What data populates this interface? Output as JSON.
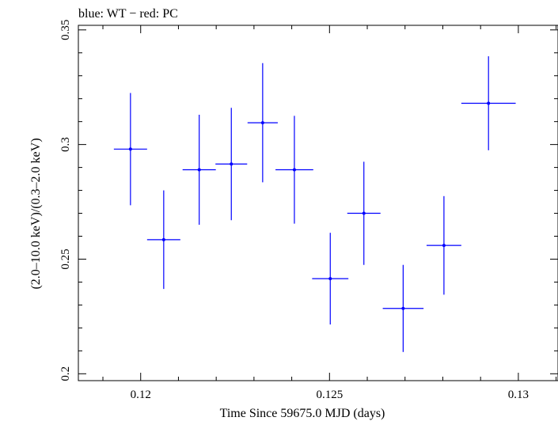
{
  "chart_data": {
    "type": "scatter",
    "title": "blue: WT − red: PC",
    "xlabel": "Time Since 59675.0 MJD (days)",
    "ylabel": "(2.0–10.0 keV)/(0.3–2.0 keV)",
    "xlim": [
      0.11835,
      0.13105
    ],
    "ylim": [
      0.197,
      0.352
    ],
    "x_ticks": [
      {
        "value": 0.12,
        "label": "0.12"
      },
      {
        "value": 0.125,
        "label": "0.125"
      },
      {
        "value": 0.13,
        "label": "0.13"
      }
    ],
    "y_ticks": [
      {
        "value": 0.2,
        "label": "0.2"
      },
      {
        "value": 0.25,
        "label": "0.25"
      },
      {
        "value": 0.3,
        "label": "0.3"
      },
      {
        "value": 0.35,
        "label": "0.35"
      }
    ],
    "grid": false,
    "series": [
      {
        "color": "#0000ff",
        "points": [
          {
            "x": 0.11973,
            "xerr": 0.00044,
            "y": 0.298,
            "yerr": 0.0245
          },
          {
            "x": 0.12061,
            "xerr": 0.00044,
            "y": 0.2585,
            "yerr": 0.0215
          },
          {
            "x": 0.12155,
            "xerr": 0.00044,
            "y": 0.289,
            "yerr": 0.024
          },
          {
            "x": 0.1224,
            "xerr": 0.00042,
            "y": 0.2915,
            "yerr": 0.0245
          },
          {
            "x": 0.12323,
            "xerr": 0.0004,
            "y": 0.3095,
            "yerr": 0.026
          },
          {
            "x": 0.12407,
            "xerr": 0.0005,
            "y": 0.289,
            "yerr": 0.0235
          },
          {
            "x": 0.12502,
            "xerr": 0.00048,
            "y": 0.2415,
            "yerr": 0.02
          },
          {
            "x": 0.12591,
            "xerr": 0.00044,
            "y": 0.27,
            "yerr": 0.0225
          },
          {
            "x": 0.12695,
            "xerr": 0.00054,
            "y": 0.2285,
            "yerr": 0.019
          },
          {
            "x": 0.12803,
            "xerr": 0.00046,
            "y": 0.256,
            "yerr": 0.0215
          },
          {
            "x": 0.12921,
            "xerr": 0.00072,
            "y": 0.318,
            "yerr": 0.0205
          }
        ]
      }
    ]
  }
}
